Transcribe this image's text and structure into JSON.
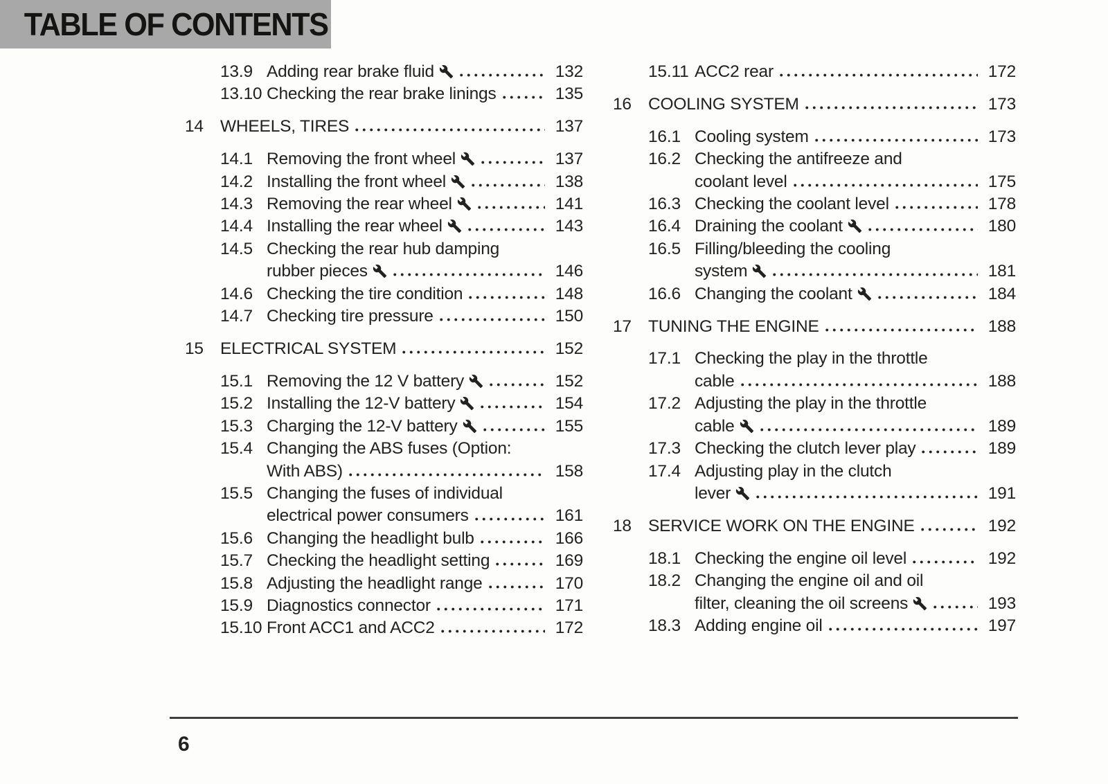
{
  "header": {
    "title": "TABLE OF CONTENTS"
  },
  "footer": {
    "page_number": "6"
  },
  "icons": {
    "service_marker": "wrench-icon"
  },
  "colors": {
    "header_bg": "#a8a8a8",
    "text": "#222220",
    "rule": "#3f3f3f"
  },
  "toc": {
    "columns": [
      {
        "name": "left",
        "entries": [
          {
            "level": "sub",
            "num": "13.9",
            "lines": [
              "Adding rear brake fluid"
            ],
            "wrench": true,
            "page": "132"
          },
          {
            "level": "sub",
            "num": "13.10",
            "lines": [
              "Checking the rear brake linings"
            ],
            "wrench": false,
            "page": "135"
          },
          {
            "level": "section",
            "num": "14",
            "lines": [
              "WHEELS, TIRES"
            ],
            "wrench": false,
            "page": "137"
          },
          {
            "level": "sub",
            "num": "14.1",
            "lines": [
              "Removing the front wheel"
            ],
            "wrench": true,
            "page": "137"
          },
          {
            "level": "sub",
            "num": "14.2",
            "lines": [
              "Installing the front wheel"
            ],
            "wrench": true,
            "page": "138"
          },
          {
            "level": "sub",
            "num": "14.3",
            "lines": [
              "Removing the rear wheel"
            ],
            "wrench": true,
            "page": "141"
          },
          {
            "level": "sub",
            "num": "14.4",
            "lines": [
              "Installing the rear wheel"
            ],
            "wrench": true,
            "page": "143"
          },
          {
            "level": "sub",
            "num": "14.5",
            "lines": [
              "Checking the rear hub damping",
              "rubber pieces"
            ],
            "wrench": true,
            "page": "146"
          },
          {
            "level": "sub",
            "num": "14.6",
            "lines": [
              "Checking the tire condition"
            ],
            "wrench": false,
            "page": "148"
          },
          {
            "level": "sub",
            "num": "14.7",
            "lines": [
              "Checking tire pressure"
            ],
            "wrench": false,
            "page": "150"
          },
          {
            "level": "section",
            "num": "15",
            "lines": [
              "ELECTRICAL SYSTEM"
            ],
            "wrench": false,
            "page": "152"
          },
          {
            "level": "sub",
            "num": "15.1",
            "lines": [
              "Removing the 12 V battery"
            ],
            "wrench": true,
            "page": "152"
          },
          {
            "level": "sub",
            "num": "15.2",
            "lines": [
              "Installing the 12-V battery"
            ],
            "wrench": true,
            "page": "154"
          },
          {
            "level": "sub",
            "num": "15.3",
            "lines": [
              "Charging the 12-V battery"
            ],
            "wrench": true,
            "page": "155"
          },
          {
            "level": "sub",
            "num": "15.4",
            "lines": [
              "Changing the ABS fuses (Option:",
              "With ABS)"
            ],
            "wrench": false,
            "page": "158"
          },
          {
            "level": "sub",
            "num": "15.5",
            "lines": [
              "Changing the fuses of individual",
              "electrical power consumers"
            ],
            "wrench": false,
            "page": "161"
          },
          {
            "level": "sub",
            "num": "15.6",
            "lines": [
              "Changing the headlight bulb"
            ],
            "wrench": false,
            "page": "166"
          },
          {
            "level": "sub",
            "num": "15.7",
            "lines": [
              "Checking the headlight setting"
            ],
            "wrench": false,
            "page": "169"
          },
          {
            "level": "sub",
            "num": "15.8",
            "lines": [
              "Adjusting the headlight range"
            ],
            "wrench": false,
            "page": "170"
          },
          {
            "level": "sub",
            "num": "15.9",
            "lines": [
              "Diagnostics connector"
            ],
            "wrench": false,
            "page": "171"
          },
          {
            "level": "sub",
            "num": "15.10",
            "lines": [
              "Front ACC1 and ACC2"
            ],
            "wrench": false,
            "page": "172"
          }
        ]
      },
      {
        "name": "right",
        "entries": [
          {
            "level": "sub",
            "num": "15.11",
            "lines": [
              "ACC2 rear"
            ],
            "wrench": false,
            "page": "172"
          },
          {
            "level": "section",
            "num": "16",
            "lines": [
              "COOLING SYSTEM"
            ],
            "wrench": false,
            "page": "173"
          },
          {
            "level": "sub",
            "num": "16.1",
            "lines": [
              "Cooling system"
            ],
            "wrench": false,
            "page": "173"
          },
          {
            "level": "sub",
            "num": "16.2",
            "lines": [
              "Checking the antifreeze and",
              "coolant level"
            ],
            "wrench": false,
            "page": "175"
          },
          {
            "level": "sub",
            "num": "16.3",
            "lines": [
              "Checking the coolant level"
            ],
            "wrench": false,
            "page": "178"
          },
          {
            "level": "sub",
            "num": "16.4",
            "lines": [
              "Draining the coolant"
            ],
            "wrench": true,
            "page": "180"
          },
          {
            "level": "sub",
            "num": "16.5",
            "lines": [
              "Filling/bleeding the cooling",
              "system"
            ],
            "wrench": true,
            "page": "181"
          },
          {
            "level": "sub",
            "num": "16.6",
            "lines": [
              "Changing the coolant"
            ],
            "wrench": true,
            "page": "184"
          },
          {
            "level": "section",
            "num": "17",
            "lines": [
              "TUNING THE ENGINE"
            ],
            "wrench": false,
            "page": "188"
          },
          {
            "level": "sub",
            "num": "17.1",
            "lines": [
              "Checking the play in the throttle",
              "cable"
            ],
            "wrench": false,
            "page": "188"
          },
          {
            "level": "sub",
            "num": "17.2",
            "lines": [
              "Adjusting the play in the throttle",
              "cable"
            ],
            "wrench": true,
            "page": "189"
          },
          {
            "level": "sub",
            "num": "17.3",
            "lines": [
              "Checking the clutch lever play"
            ],
            "wrench": false,
            "page": "189"
          },
          {
            "level": "sub",
            "num": "17.4",
            "lines": [
              "Adjusting play in the clutch",
              "lever"
            ],
            "wrench": true,
            "page": "191"
          },
          {
            "level": "section",
            "num": "18",
            "lines": [
              "SERVICE WORK ON THE ENGINE"
            ],
            "wrench": false,
            "page": "192"
          },
          {
            "level": "sub",
            "num": "18.1",
            "lines": [
              "Checking the engine oil level"
            ],
            "wrench": false,
            "page": "192"
          },
          {
            "level": "sub",
            "num": "18.2",
            "lines": [
              "Changing the engine oil and oil",
              "filter, cleaning the oil screens"
            ],
            "wrench": true,
            "page": "193"
          },
          {
            "level": "sub",
            "num": "18.3",
            "lines": [
              "Adding engine oil"
            ],
            "wrench": false,
            "page": "197"
          }
        ]
      }
    ]
  }
}
